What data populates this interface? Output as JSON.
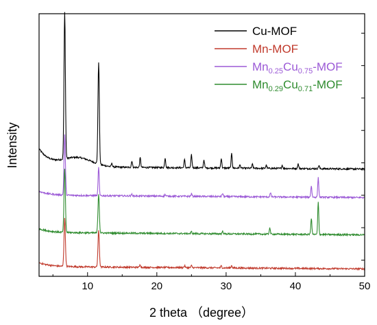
{
  "chart_data": {
    "type": "line",
    "title": "",
    "xlabel": "2 theta （degree）",
    "ylabel": "Intensity",
    "xlim": [
      3,
      50
    ],
    "xticks": [
      10,
      20,
      30,
      40,
      50
    ],
    "y_tick_labels_shown": false,
    "grid": false,
    "legend_position": "top-right",
    "offset_stacked": true,
    "series": [
      {
        "name": "Cu-MOF",
        "legend_parts": [
          {
            "text": "Cu-MOF",
            "sub": false
          }
        ],
        "color": "#000000",
        "baseline": 0.88,
        "peaks": [
          {
            "x": 6.7,
            "y": 4.55
          },
          {
            "x": 11.6,
            "y": 3.15
          },
          {
            "x": 13.5,
            "y": 0.1
          },
          {
            "x": 16.4,
            "y": 0.2
          },
          {
            "x": 17.6,
            "y": 0.3
          },
          {
            "x": 21.2,
            "y": 0.3
          },
          {
            "x": 24.0,
            "y": 0.25
          },
          {
            "x": 25.0,
            "y": 0.4
          },
          {
            "x": 26.8,
            "y": 0.25
          },
          {
            "x": 29.3,
            "y": 0.3
          },
          {
            "x": 30.8,
            "y": 0.45
          },
          {
            "x": 32.0,
            "y": 0.1
          },
          {
            "x": 33.8,
            "y": 0.12
          },
          {
            "x": 35.8,
            "y": 0.1
          },
          {
            "x": 38.1,
            "y": 0.1
          },
          {
            "x": 40.4,
            "y": 0.15
          },
          {
            "x": 43.4,
            "y": 0.1
          }
        ]
      },
      {
        "name": "Mn-MOF",
        "legend_parts": [
          {
            "text": "Mn-MOF",
            "sub": false
          }
        ],
        "color": "#c0392b",
        "baseline": -2.2,
        "peaks": [
          {
            "x": 6.7,
            "y": 1.5
          },
          {
            "x": 11.6,
            "y": 1.12
          },
          {
            "x": 17.6,
            "y": 0.08
          },
          {
            "x": 24.0,
            "y": 0.06
          },
          {
            "x": 25.0,
            "y": 0.06
          },
          {
            "x": 29.3,
            "y": 0.06
          },
          {
            "x": 30.8,
            "y": 0.08
          }
        ]
      },
      {
        "name": "Mn0.25Cu0.75-MOF",
        "legend_parts": [
          {
            "text": "Mn",
            "sub": false
          },
          {
            "text": "0.25",
            "sub": true
          },
          {
            "text": "Cu",
            "sub": false
          },
          {
            "text": "0.75",
            "sub": true
          },
          {
            "text": "-MOF",
            "sub": false
          }
        ],
        "color": "#9b59d6",
        "baseline": 0.0,
        "peaks": [
          {
            "x": 6.7,
            "y": 1.85
          },
          {
            "x": 11.6,
            "y": 0.9
          },
          {
            "x": 16.4,
            "y": 0.05
          },
          {
            "x": 21.2,
            "y": 0.05
          },
          {
            "x": 25.0,
            "y": 0.08
          },
          {
            "x": 29.5,
            "y": 0.1
          },
          {
            "x": 36.4,
            "y": 0.12
          },
          {
            "x": 42.3,
            "y": 0.35
          },
          {
            "x": 43.3,
            "y": 0.6
          }
        ]
      },
      {
        "name": "Mn0.29Cu0.71-MOF",
        "legend_parts": [
          {
            "text": "Mn",
            "sub": false
          },
          {
            "text": "0.29",
            "sub": true
          },
          {
            "text": "Cu",
            "sub": false
          },
          {
            "text": "0.71",
            "sub": true
          },
          {
            "text": "-MOF",
            "sub": false
          }
        ],
        "color": "#2e8b2e",
        "baseline": -1.15,
        "peaks": [
          {
            "x": 6.7,
            "y": 1.95
          },
          {
            "x": 11.6,
            "y": 1.2
          },
          {
            "x": 25.0,
            "y": 0.06
          },
          {
            "x": 29.5,
            "y": 0.08
          },
          {
            "x": 36.3,
            "y": 0.2
          },
          {
            "x": 42.3,
            "y": 0.5
          },
          {
            "x": 43.3,
            "y": 1.0
          }
        ]
      }
    ]
  }
}
